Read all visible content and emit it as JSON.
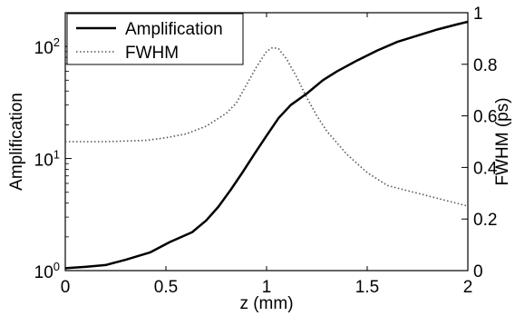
{
  "chart_data": {
    "type": "line",
    "xlabel": "z (mm)",
    "ylabel_left": "Amplification",
    "ylabel_right": "FWHM (ps)",
    "xlim": [
      0,
      2
    ],
    "ylim_left": [
      1,
      200
    ],
    "yscale_left": "log",
    "ylim_right": [
      0,
      1
    ],
    "x_ticks": [
      "0",
      "0.5",
      "1",
      "1.5",
      "2"
    ],
    "y_left_ticks": [
      {
        "base": "10",
        "exp": "0",
        "value": 1
      },
      {
        "base": "10",
        "exp": "1",
        "value": 10
      },
      {
        "base": "10",
        "exp": "2",
        "value": 100
      }
    ],
    "y_right_ticks": [
      "0",
      "0.2",
      "0.4",
      "0.6",
      "0.8",
      "1"
    ],
    "legend_position": "top-left",
    "series": [
      {
        "name": "Amplification",
        "axis": "left",
        "style": "solid",
        "color": "#000000",
        "x": [
          0,
          0.1,
          0.2,
          0.3,
          0.42,
          0.52,
          0.63,
          0.7,
          0.76,
          0.82,
          0.88,
          0.94,
          1.0,
          1.06,
          1.12,
          1.2,
          1.28,
          1.35,
          1.45,
          1.55,
          1.65,
          1.75,
          1.85,
          1.95,
          2.0
        ],
        "values": [
          1.05,
          1.08,
          1.12,
          1.25,
          1.45,
          1.8,
          2.2,
          2.8,
          3.7,
          5.2,
          7.5,
          11,
          16,
          23,
          30,
          38,
          50,
          60,
          75,
          92,
          110,
          125,
          142,
          158,
          166
        ]
      },
      {
        "name": "FWHM",
        "axis": "right",
        "style": "dotted",
        "color": "#555555",
        "x": [
          0,
          0.2,
          0.4,
          0.5,
          0.6,
          0.7,
          0.8,
          0.85,
          0.9,
          0.95,
          1.0,
          1.03,
          1.06,
          1.1,
          1.15,
          1.2,
          1.25,
          1.3,
          1.4,
          1.5,
          1.6,
          1.7,
          1.8,
          1.9,
          2.0
        ],
        "values": [
          0.5,
          0.5,
          0.505,
          0.515,
          0.53,
          0.56,
          0.61,
          0.65,
          0.72,
          0.79,
          0.85,
          0.865,
          0.86,
          0.82,
          0.75,
          0.67,
          0.6,
          0.54,
          0.45,
          0.38,
          0.33,
          0.31,
          0.29,
          0.27,
          0.25
        ]
      }
    ]
  }
}
